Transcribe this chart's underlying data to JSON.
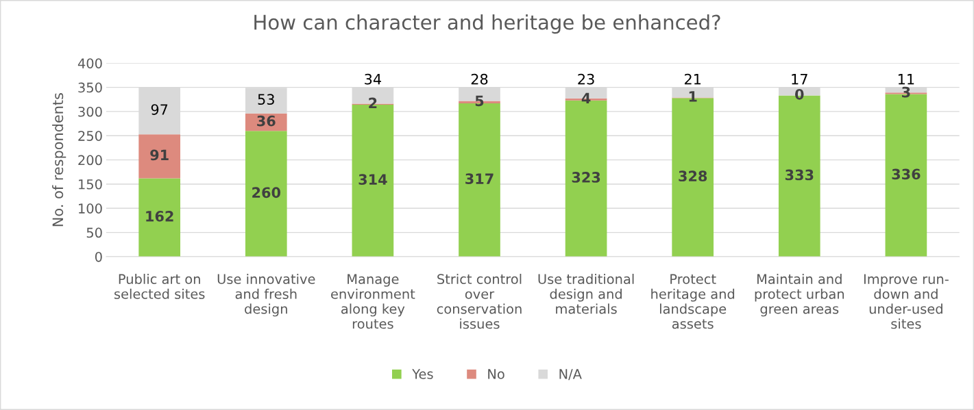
{
  "chart_data": {
    "type": "bar",
    "title": "How can character and heritage be enhanced?",
    "ylabel": "No. of respondents",
    "categories": [
      "Public art on\nselected sites",
      "Use innovative\nand fresh\ndesign",
      "Manage\nenvironment\nalong key\nroutes",
      "Strict control\nover\nconservation\nissues",
      "Use traditional\ndesign and\nmaterials",
      "Protect\nheritage and\nlandscape\nassets",
      "Maintain and\nprotect urban\ngreen areas",
      "Improve run-\ndown and\nunder-used\nsites"
    ],
    "series": [
      {
        "name": "Yes",
        "color": "#92d050",
        "values": [
          162,
          260,
          314,
          317,
          323,
          328,
          333,
          336
        ]
      },
      {
        "name": "No",
        "color": "#dd8a7e",
        "values": [
          91,
          36,
          2,
          5,
          4,
          1,
          0,
          3
        ]
      },
      {
        "name": "N/A",
        "color": "#d9d9d9",
        "values": [
          97,
          53,
          34,
          28,
          23,
          21,
          17,
          11
        ]
      }
    ],
    "stacked": true,
    "ylim": [
      0,
      400
    ],
    "yticks": [
      0,
      50,
      100,
      150,
      200,
      250,
      300,
      350,
      400
    ],
    "grid": "y",
    "legend": "bottom",
    "data_labels": true
  }
}
